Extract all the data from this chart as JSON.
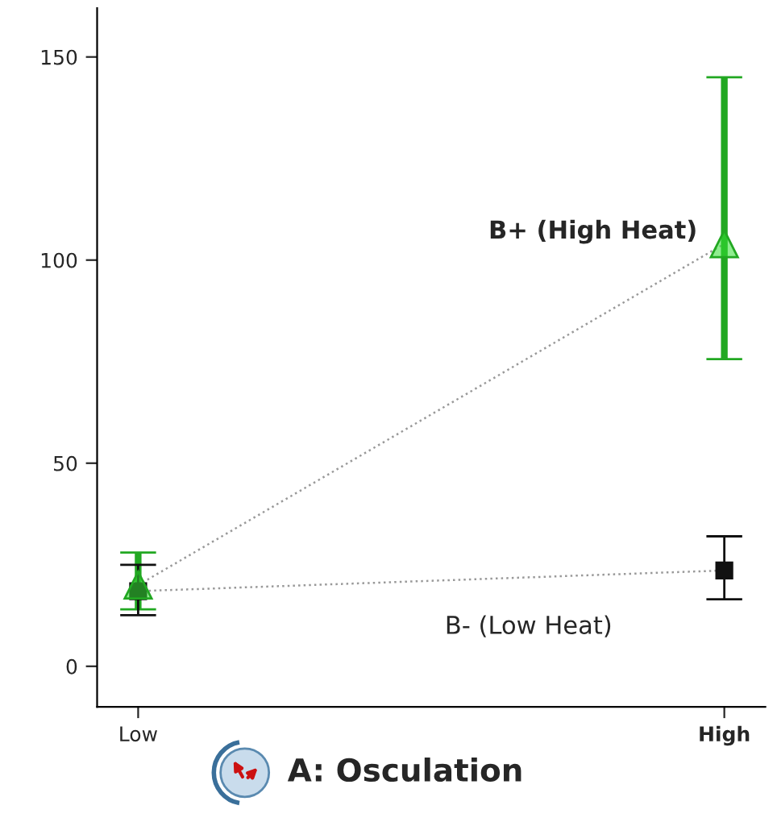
{
  "chart_data": {
    "type": "line",
    "categories": [
      "Low",
      "High"
    ],
    "series": [
      {
        "name": "B+ (High Heat)",
        "color": "#22a822",
        "marker": "triangle",
        "values": [
          20,
          104
        ],
        "errors": [
          [
            14,
            28
          ],
          [
            75.6,
            145
          ]
        ]
      },
      {
        "name": "B- (Low Heat)",
        "color": "#111111",
        "marker": "square",
        "values": [
          18.5,
          23.6
        ],
        "errors": [
          [
            12.6,
            25
          ],
          [
            16.5,
            32
          ]
        ]
      }
    ],
    "ylim": [
      -10,
      162
    ],
    "yticks": [
      0,
      50,
      100,
      150
    ],
    "line_style": "dotted",
    "grid": false,
    "legend": false,
    "annotations": [
      "A: Osculation"
    ]
  }
}
